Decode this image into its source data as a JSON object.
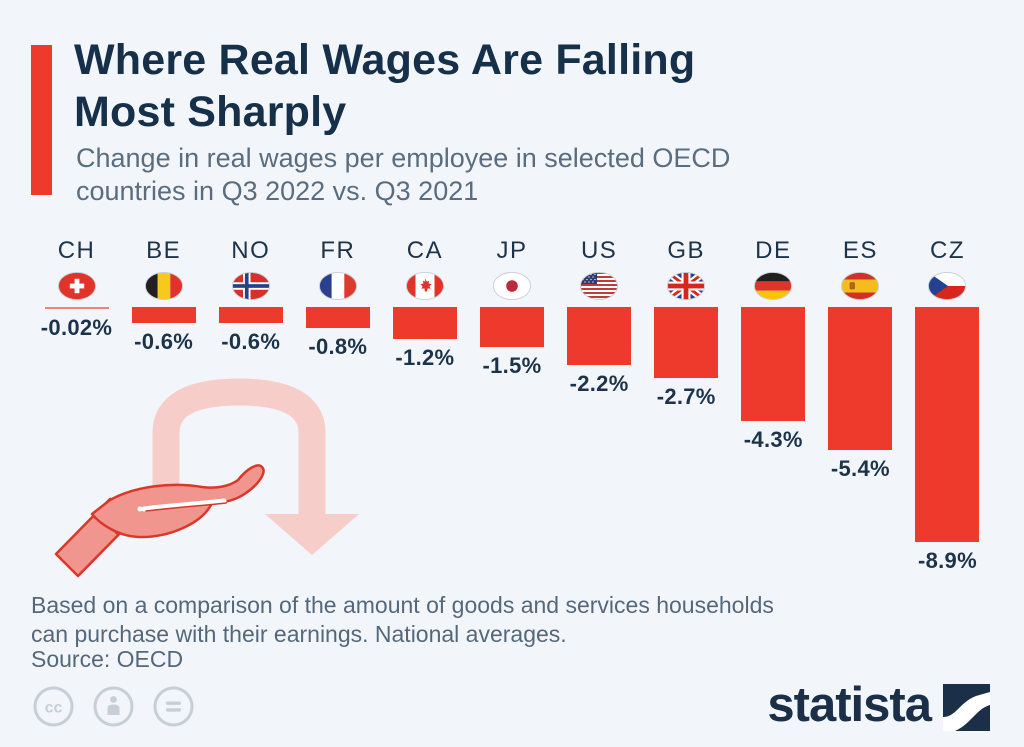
{
  "header": {
    "title_line1": "Where Real Wages Are Falling",
    "title_line2": "Most Sharply",
    "subtitle_line1": "Change in real wages per employee in selected OECD",
    "subtitle_line2": "countries in Q3 2022 vs. Q3 2021"
  },
  "chart_data": {
    "type": "bar",
    "title": "Where Real Wages Are Falling Most Sharply",
    "subtitle": "Change in real wages per employee in selected OECD countries in Q3 2022 vs. Q3 2021",
    "unit": "percent",
    "orientation": "columns-extend-downward-from-zero-baseline",
    "categories": [
      "CH",
      "BE",
      "NO",
      "FR",
      "CA",
      "JP",
      "US",
      "GB",
      "DE",
      "ES",
      "CZ"
    ],
    "values": [
      -0.02,
      -0.6,
      -0.6,
      -0.8,
      -1.2,
      -1.5,
      -2.2,
      -2.7,
      -4.3,
      -5.4,
      -8.9
    ],
    "value_labels": [
      "-0.02%",
      "-0.6%",
      "-0.6%",
      "-0.8%",
      "-1.2%",
      "-1.5%",
      "-2.2%",
      "-2.7%",
      "-4.3%",
      "-5.4%",
      "-8.9%"
    ],
    "flag_icons": [
      "switzerland-flag-icon",
      "belgium-flag-icon",
      "norway-flag-icon",
      "france-flag-icon",
      "canada-flag-icon",
      "japan-flag-icon",
      "united-states-flag-icon",
      "united-kingdom-flag-icon",
      "germany-flag-icon",
      "spain-flag-icon",
      "czech-republic-flag-icon"
    ],
    "bar_color": "#ee3a2d",
    "label_color": "#1d3349",
    "axis": {
      "baseline": 0,
      "gridlines": false,
      "value_axis_shown": false,
      "labels_position": "below-bars"
    }
  },
  "illustration": {
    "name": "hand-receiving-falling-arrow",
    "arrow_color": "#f7cdc9",
    "hand_fill": "#f0968e",
    "hand_outline": "#da372b"
  },
  "footer": {
    "note_line1": "Based on a comparison of the amount of goods and services households",
    "note_line2": "can purchase with their earnings. National averages.",
    "source": "Source: OECD"
  },
  "branding": {
    "logo_text": "statista",
    "logo_color": "#1b2f49",
    "license_icons": [
      "cc-icon",
      "attribution-person-icon",
      "equals-icon"
    ],
    "license_icon_color": "#c7ced6"
  },
  "theme": {
    "background": "#f2f6fa",
    "accent_red": "#ee3a2d",
    "title_color": "#16304a",
    "subtitle_color": "#5a6d7f",
    "note_color": "#55687b"
  }
}
